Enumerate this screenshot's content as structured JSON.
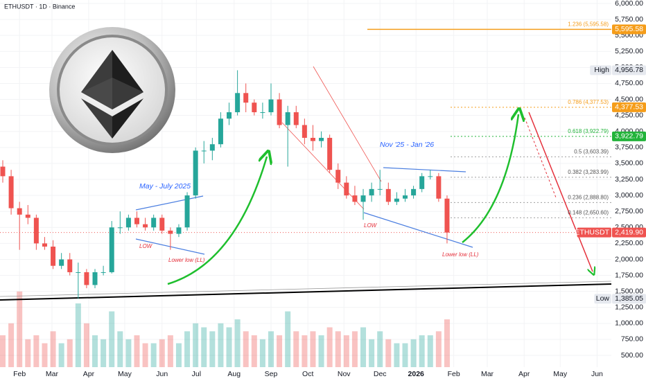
{
  "chart_data": {
    "type": "candlestick",
    "title": "ETHUSDT · 1D · Binance",
    "open": [
      3450,
      3300,
      2800,
      2700,
      2650,
      2250,
      2200,
      1900,
      2000,
      1800,
      1800,
      1600,
      1800,
      1800,
      2500,
      2500,
      2650,
      2550,
      2500,
      2650,
      2450,
      2400,
      2500,
      3000,
      3700,
      3700,
      3800,
      4200,
      4300,
      4600,
      4450,
      4300,
      4300,
      4500,
      4100,
      4300,
      4100,
      3900,
      3850,
      3900,
      3400,
      3200,
      3000,
      2900,
      3000,
      3100,
      3100,
      2900,
      2950,
      3000,
      3100,
      3300,
      3300,
      2950
    ],
    "high": [
      3550,
      3400,
      2900,
      2850,
      2700,
      2350,
      2300,
      2100,
      2100,
      1950,
      1850,
      1850,
      1900,
      2600,
      2750,
      2700,
      2750,
      2650,
      2700,
      2700,
      2500,
      2550,
      3050,
      3750,
      3850,
      3900,
      4300,
      4450,
      4956,
      4750,
      4500,
      4450,
      4750,
      4600,
      4400,
      4400,
      4200,
      4100,
      4000,
      3950,
      3500,
      3300,
      3150,
      3100,
      3200,
      3400,
      3200,
      3050,
      3100,
      3150,
      3350,
      3400,
      3350,
      3000
    ],
    "low": [
      3200,
      2700,
      2150,
      2550,
      2150,
      2150,
      1850,
      1850,
      1750,
      1385,
      1550,
      1550,
      1750,
      1780,
      2400,
      2450,
      2500,
      2450,
      2450,
      2400,
      2150,
      2350,
      2450,
      2950,
      3500,
      3550,
      3750,
      4100,
      4250,
      4300,
      4250,
      4200,
      4250,
      4050,
      3450,
      4050,
      3800,
      3700,
      3750,
      3350,
      3100,
      2950,
      2850,
      2620,
      2900,
      3000,
      2850,
      2850,
      2900,
      2950,
      3050,
      3250,
      2900,
      2250
    ],
    "close": [
      3300,
      2800,
      2700,
      2650,
      2250,
      2200,
      1900,
      2000,
      1800,
      1800,
      1600,
      1800,
      1800,
      2500,
      2500,
      2650,
      2550,
      2500,
      2650,
      2450,
      2400,
      2500,
      3000,
      3700,
      3700,
      3800,
      4200,
      4300,
      4600,
      4450,
      4300,
      4300,
      4500,
      4100,
      4300,
      4100,
      3900,
      3850,
      3900,
      3400,
      3200,
      3000,
      2900,
      3000,
      3100,
      3100,
      2900,
      2950,
      3000,
      3100,
      3300,
      3300,
      2950,
      2419.9
    ],
    "volume": [
      40,
      55,
      95,
      35,
      40,
      30,
      45,
      30,
      35,
      80,
      55,
      40,
      35,
      70,
      45,
      35,
      40,
      30,
      30,
      35,
      40,
      30,
      45,
      55,
      50,
      45,
      55,
      50,
      60,
      45,
      40,
      35,
      45,
      40,
      70,
      45,
      40,
      45,
      40,
      50,
      45,
      40,
      45,
      50,
      35,
      45,
      35,
      30,
      30,
      35,
      40,
      40,
      45,
      60
    ],
    "vlim": [
      0,
      100
    ],
    "up_color": "#26a69a",
    "down_color": "#ef5350",
    "xlim": [
      -0.33,
      72.6
    ],
    "xticks": [
      {
        "value": 2.0,
        "label": "Feb"
      },
      {
        "value": 5.87,
        "label": "Mar"
      },
      {
        "value": 10.25,
        "label": "Apr"
      },
      {
        "value": 14.55,
        "label": "May"
      },
      {
        "value": 19.0,
        "label": "Jun"
      },
      {
        "value": 23.1,
        "label": "Jul"
      },
      {
        "value": 27.6,
        "label": "Aug"
      },
      {
        "value": 32.0,
        "label": "Sep"
      },
      {
        "value": 36.4,
        "label": "Oct"
      },
      {
        "value": 40.7,
        "label": "Nov"
      },
      {
        "value": 45.0,
        "label": "Dec"
      },
      {
        "value": 49.3,
        "label": "2026"
      },
      {
        "value": 53.8,
        "label": "Feb"
      },
      {
        "value": 57.8,
        "label": "Mar"
      },
      {
        "value": 62.2,
        "label": "Apr"
      },
      {
        "value": 66.5,
        "label": "May"
      },
      {
        "value": 70.9,
        "label": "Jun"
      }
    ],
    "ylim": [
      316.3,
      6054
    ],
    "yticks": [
      {
        "value": 6000,
        "label": "6,000.00"
      },
      {
        "value": 5750,
        "label": "5,750.00"
      },
      {
        "value": 5500,
        "label": "5,500.00"
      },
      {
        "value": 5250,
        "label": "5,250.00"
      },
      {
        "value": 5000,
        "label": "5,000.00"
      },
      {
        "value": 4750,
        "label": "4,750.00"
      },
      {
        "value": 4500,
        "label": "4,500.00"
      },
      {
        "value": 4250,
        "label": "4,250.00"
      },
      {
        "value": 4000,
        "label": "4,000.00"
      },
      {
        "value": 3750,
        "label": "3,750.00"
      },
      {
        "value": 3500,
        "label": "3,500.00"
      },
      {
        "value": 3250,
        "label": "3,250.00"
      },
      {
        "value": 3000,
        "label": "3,000.00"
      },
      {
        "value": 2750,
        "label": "2,750.00"
      },
      {
        "value": 2500,
        "label": "2,500.00"
      },
      {
        "value": 2250,
        "label": "2,250.00"
      },
      {
        "value": 2000,
        "label": "2,000.00"
      },
      {
        "value": 1750,
        "label": "1,750.00"
      },
      {
        "value": 1500,
        "label": "1,500.00"
      },
      {
        "value": 1250,
        "label": "1,250.00"
      },
      {
        "value": 1000,
        "label": "1,000.00"
      },
      {
        "value": 750,
        "label": "750.00"
      },
      {
        "value": 500,
        "label": "500.00"
      }
    ],
    "fib_levels": [
      {
        "value": 5595.58,
        "label": "1.236 (5,595.58)",
        "color": "#f59d1a"
      },
      {
        "value": 4377.53,
        "label": "0.786 (4,377.53)",
        "color": "#f59d1a"
      },
      {
        "value": 3922.79,
        "label": "0.618 (3,922.79)",
        "color": "#22b33a"
      },
      {
        "value": 3603.39,
        "label": "0.5 (3,603.39)",
        "color": "#9e9e9e"
      },
      {
        "value": 3283.99,
        "label": "0.382 (3,283.99)",
        "color": "#9e9e9e"
      },
      {
        "value": 2888.8,
        "label": "0.236 (2,888.80)",
        "color": "#9e9e9e"
      },
      {
        "value": 2650.6,
        "label": "0.148 (2,650.60)",
        "color": "#9e9e9e"
      }
    ],
    "price_tags": [
      {
        "value": 5595.58,
        "label": "5,595.58",
        "color": "#f59d1a"
      },
      {
        "value": 4956.78,
        "label": "4,956.78",
        "name": "High",
        "color": "#e6e9ef"
      },
      {
        "value": 4377.53,
        "label": "4,377.53",
        "color": "#f59d1a"
      },
      {
        "value": 3922.79,
        "label": "3,922.79",
        "color": "#22b33a"
      },
      {
        "value": 2419.9,
        "label": "2,419.90",
        "name": "ETHUSDT",
        "color": "#ef5350"
      },
      {
        "value": 1385.05,
        "label": "1,385.05",
        "name": "Low",
        "color": "#e6e9ef"
      }
    ],
    "annotations": [
      "May - July 2025",
      "Nov '25 - Jan '26",
      "LOW",
      "Lower low (LL)",
      "LOW",
      "Lower low (LL)"
    ]
  }
}
